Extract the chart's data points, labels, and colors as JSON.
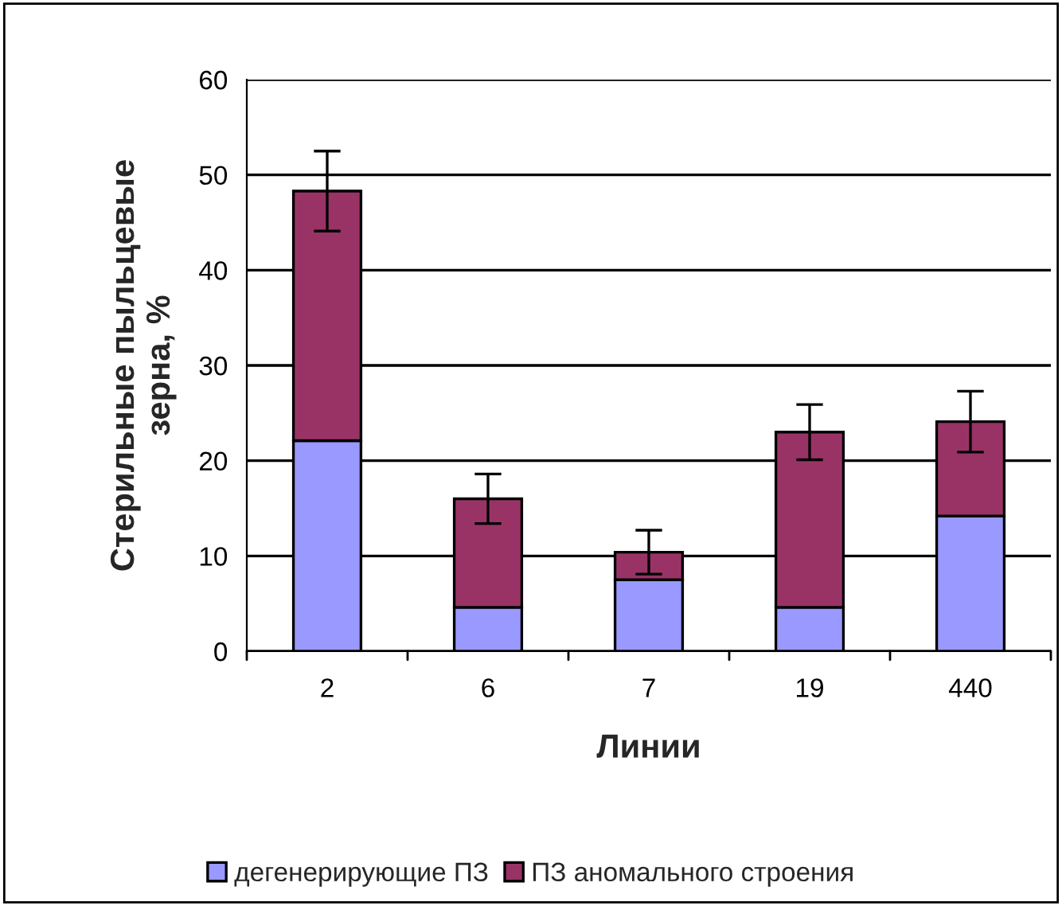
{
  "chart_data": {
    "type": "bar",
    "stacked": true,
    "xlabel": "Линии",
    "ylabel": "Стерильные пыльцевые\nзерна, %",
    "categories": [
      "2",
      "6",
      "7",
      "19",
      "440"
    ],
    "series": [
      {
        "name": "дегенерирующие ПЗ",
        "color": "#9999ff",
        "values": [
          22.1,
          4.6,
          7.5,
          4.6,
          14.2
        ]
      },
      {
        "name": "ПЗ аномального строения",
        "color": "#993366",
        "values": [
          26.2,
          11.4,
          2.9,
          18.4,
          9.9
        ],
        "errors": [
          4.2,
          2.6,
          2.3,
          2.9,
          3.2
        ]
      }
    ],
    "ylim": [
      0,
      60
    ],
    "yticks": [
      0,
      10,
      20,
      30,
      40,
      50,
      60
    ],
    "grid": "y",
    "legend": "bottom"
  }
}
